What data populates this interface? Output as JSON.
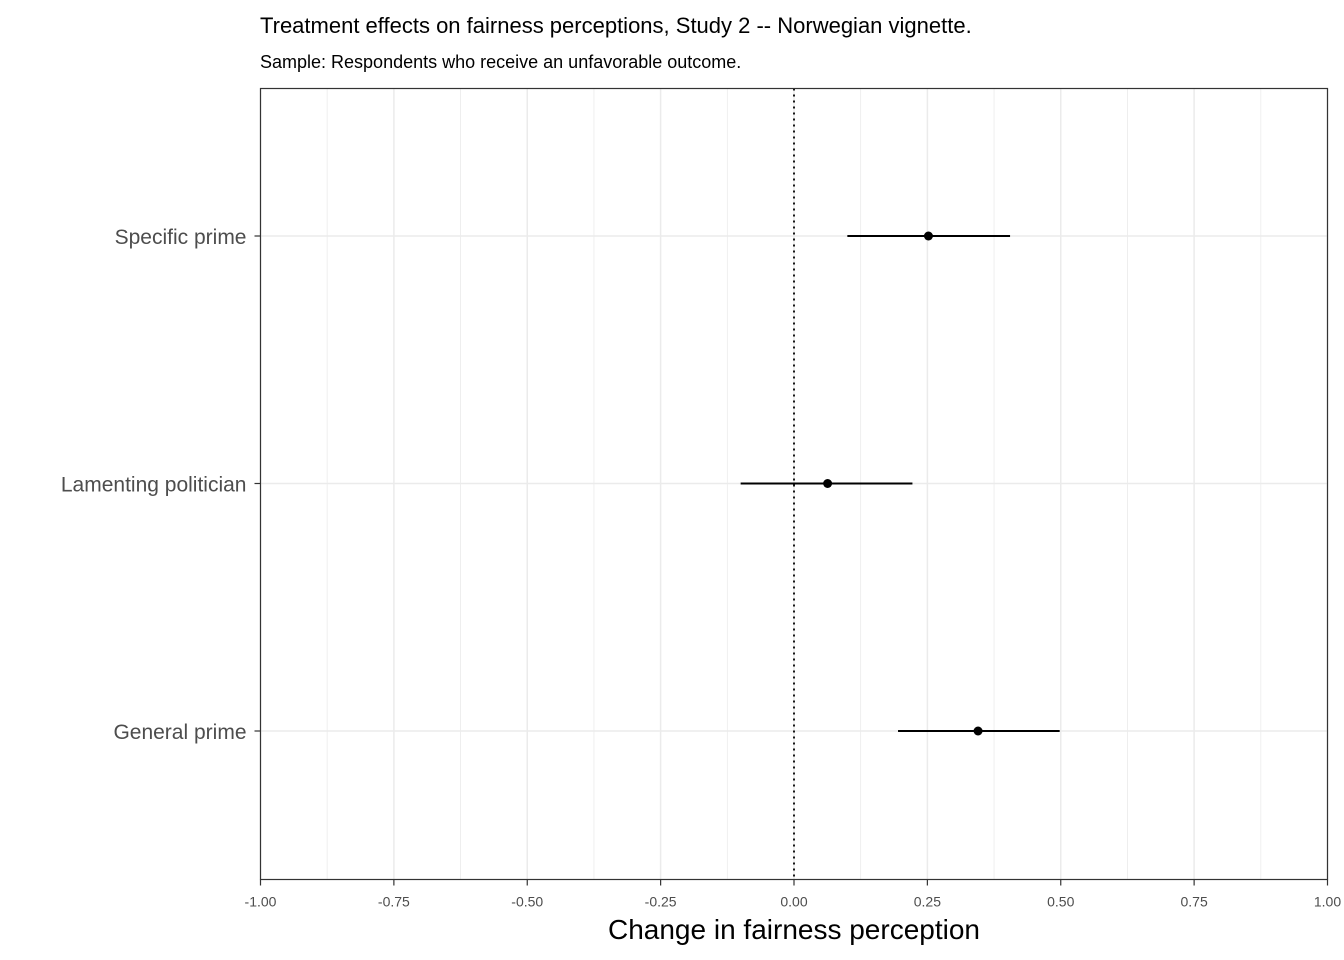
{
  "chart_data": {
    "type": "scatter",
    "title": "Treatment effects on fairness perceptions, Study 2 -- Norwegian vignette.",
    "subtitle": "Sample: Respondents who receive an unfavorable outcome.",
    "xlabel": "Change in fairness perception",
    "ylabel": "",
    "xlim": [
      -1.0,
      1.0
    ],
    "x_ticks": [
      -1.0,
      -0.75,
      -0.5,
      -0.25,
      0.0,
      0.25,
      0.5,
      0.75,
      1.0
    ],
    "x_tick_labels": [
      "-1.00",
      "-0.75",
      "-0.50",
      "-0.25",
      "0.00",
      "0.25",
      "0.50",
      "0.75",
      "1.00"
    ],
    "categories": [
      "General prime",
      "Lamenting politician",
      "Specific prime"
    ],
    "series": [
      {
        "estimate": [
          0.345,
          0.063,
          0.252
        ],
        "ci_low": [
          0.195,
          -0.1,
          0.1
        ],
        "ci_high": [
          0.498,
          0.222,
          0.405
        ]
      }
    ],
    "reference_line": {
      "x": 0.0,
      "style": "dotted"
    },
    "grid": true,
    "legend": "none",
    "colors": {
      "point": "#000000",
      "grid": "#ebebeb",
      "axis_text": "#4d4d4d",
      "panel_border": "#333333"
    }
  }
}
